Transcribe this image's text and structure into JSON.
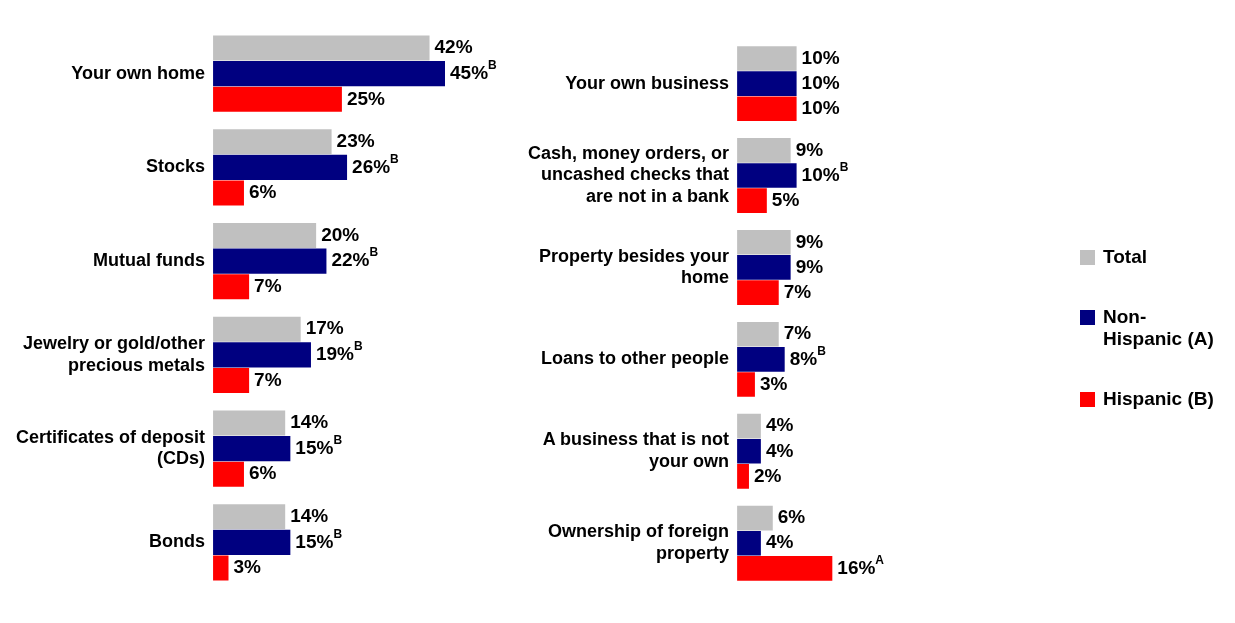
{
  "chart_data": [
    {
      "type": "bar",
      "orientation": "horizontal",
      "categories": [
        "Your own home",
        "Stocks",
        "Mutual funds",
        "Jewelry or gold/other precious metals",
        "Certificates of deposit (CDs)",
        "Bonds"
      ],
      "tick_labels": "y",
      "grid": false,
      "legend": false,
      "series": [
        {
          "color": "#c0c0c0",
          "values": [
            42,
            23,
            20,
            17,
            14,
            14
          ],
          "value_labels": [
            "42%",
            "23%",
            "20%",
            "17%",
            "14%",
            "14%"
          ]
        },
        {
          "color": "#000080",
          "values": [
            45,
            26,
            22,
            19,
            15,
            15
          ],
          "value_labels": [
            "45%$^{B}$",
            "26%$^{B}$",
            "22%$^{B}$",
            "19%$^{B}$",
            "15%$^{B}$",
            "15%$^{B}$"
          ]
        },
        {
          "color": "#ff0000",
          "values": [
            25,
            6,
            7,
            7,
            6,
            3
          ],
          "value_labels": [
            "25%",
            "6%",
            "7%",
            "7%",
            "6%",
            "3%"
          ]
        }
      ]
    },
    {
      "type": "bar",
      "orientation": "horizontal",
      "categories": [
        "Your own business",
        "Cash, money orders, or uncashed checks that are not in a bank",
        "Property besides your home",
        "Loans to other people",
        "A business that is not your own",
        "Ownership of foreign property"
      ],
      "tick_labels": "y",
      "grid": false,
      "legend": "right",
      "series": [
        {
          "name": "Total",
          "color": "#c0c0c0",
          "values": [
            10,
            9,
            9,
            7,
            4,
            6
          ],
          "value_labels": [
            "10%",
            "9%",
            "9%",
            "7%",
            "4%",
            "6%"
          ]
        },
        {
          "name": "Non-Hispanic (A)",
          "color": "#000080",
          "values": [
            10,
            10,
            9,
            8,
            4,
            4
          ],
          "value_labels": [
            "10%",
            "10%$^{B}$",
            "9%",
            "8%$^{B}$",
            "4%",
            "4%"
          ]
        },
        {
          "name": "Hispanic (B)",
          "color": "#ff0000",
          "values": [
            10,
            5,
            7,
            3,
            2,
            16
          ],
          "value_labels": [
            "10%",
            "5%",
            "7%",
            "3%",
            "2%",
            "16%$^{A}$"
          ]
        }
      ]
    }
  ]
}
